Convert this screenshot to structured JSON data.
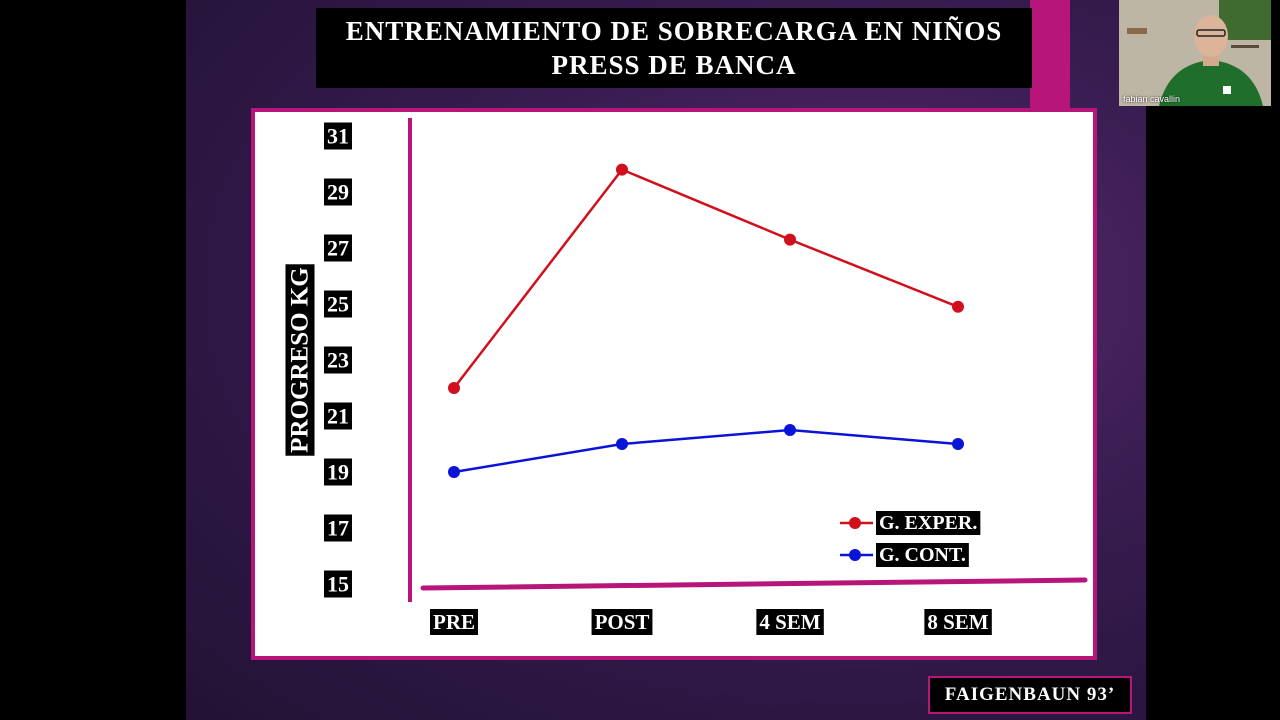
{
  "slide": {
    "title_line1": "ENTRENAMIENTO  DE SOBRECARGA  EN  NIÑOS",
    "title_line2": "PRESS  DE  BANCA",
    "credit": "FAIGENBAUN  93’",
    "accent_color": "#b8157a"
  },
  "webcam": {
    "participant_name": "fabian cavallin"
  },
  "chart_data": {
    "type": "line",
    "categories": [
      "PRE",
      "POST",
      "4 SEM",
      "8 SEM"
    ],
    "ylabel": "PROGRESO KG",
    "xlabel": "",
    "ylim": [
      15,
      31
    ],
    "yticks": [
      15,
      17,
      19,
      21,
      23,
      25,
      27,
      29,
      31
    ],
    "series": [
      {
        "name": "G. EXPER.",
        "color": "#d0101c",
        "values": [
          22,
          29.8,
          27.3,
          24.9
        ]
      },
      {
        "name": "G. CONT.",
        "color": "#0a14d8",
        "values": [
          19,
          20,
          20.5,
          20
        ]
      }
    ],
    "legend_position": "bottom-right",
    "grid": false
  }
}
